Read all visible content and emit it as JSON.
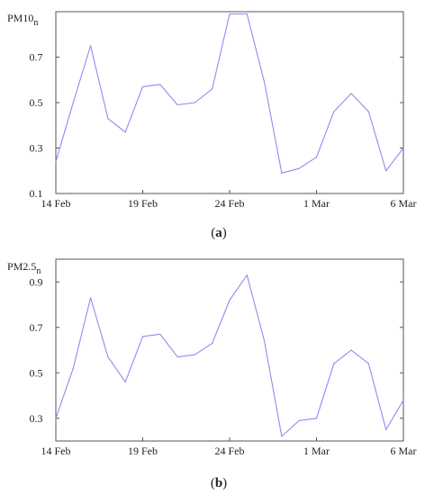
{
  "chart_data": [
    {
      "type": "line",
      "panel_label": "(a)",
      "panel_letter": "a",
      "ylabel": "PM10",
      "ylabel_subscript": "n",
      "x_tick_labels": [
        "14 Feb",
        "19 Feb",
        "24 Feb",
        "1 Mar",
        "6 Mar"
      ],
      "x_tick_positions": [
        0,
        5,
        10,
        15,
        20
      ],
      "xlim": [
        0,
        20
      ],
      "ylim": [
        0.1,
        0.9
      ],
      "y_ticks": [
        0.1,
        0.3,
        0.5,
        0.7
      ],
      "y_tick_labels": [
        "0.1",
        "0.3",
        "0.5",
        "0.7"
      ],
      "grid": false,
      "line_color": "#8c8cf0",
      "series": [
        {
          "x": [
            0,
            1,
            2,
            3,
            4,
            5,
            6,
            7,
            8,
            9,
            10,
            11,
            12,
            13,
            14,
            15,
            16,
            17,
            18,
            19,
            20
          ],
          "y": [
            0.24,
            0.5,
            0.75,
            0.43,
            0.37,
            0.57,
            0.58,
            0.49,
            0.5,
            0.56,
            0.89,
            0.89,
            0.59,
            0.19,
            0.21,
            0.26,
            0.46,
            0.54,
            0.46,
            0.2,
            0.3
          ]
        }
      ]
    },
    {
      "type": "line",
      "panel_label": "(b)",
      "panel_letter": "b",
      "ylabel": "PM2.5",
      "ylabel_subscript": "n",
      "x_tick_labels": [
        "14 Feb",
        "19 Feb",
        "24 Feb",
        "1 Mar",
        "6 Mar"
      ],
      "x_tick_positions": [
        0,
        5,
        10,
        15,
        20
      ],
      "xlim": [
        0,
        20
      ],
      "ylim": [
        0.2,
        1.0
      ],
      "y_ticks": [
        0.3,
        0.5,
        0.7,
        0.9
      ],
      "y_tick_labels": [
        "0.3",
        "0.5",
        "0.7",
        "0.9"
      ],
      "grid": false,
      "line_color": "#8c8cf0",
      "series": [
        {
          "x": [
            0,
            1,
            2,
            3,
            4,
            5,
            6,
            7,
            8,
            9,
            10,
            11,
            12,
            13,
            14,
            15,
            16,
            17,
            18,
            19,
            20
          ],
          "y": [
            0.3,
            0.52,
            0.83,
            0.57,
            0.46,
            0.66,
            0.67,
            0.57,
            0.58,
            0.63,
            0.82,
            0.93,
            0.64,
            0.22,
            0.29,
            0.3,
            0.54,
            0.6,
            0.54,
            0.25,
            0.38
          ]
        }
      ]
    }
  ]
}
